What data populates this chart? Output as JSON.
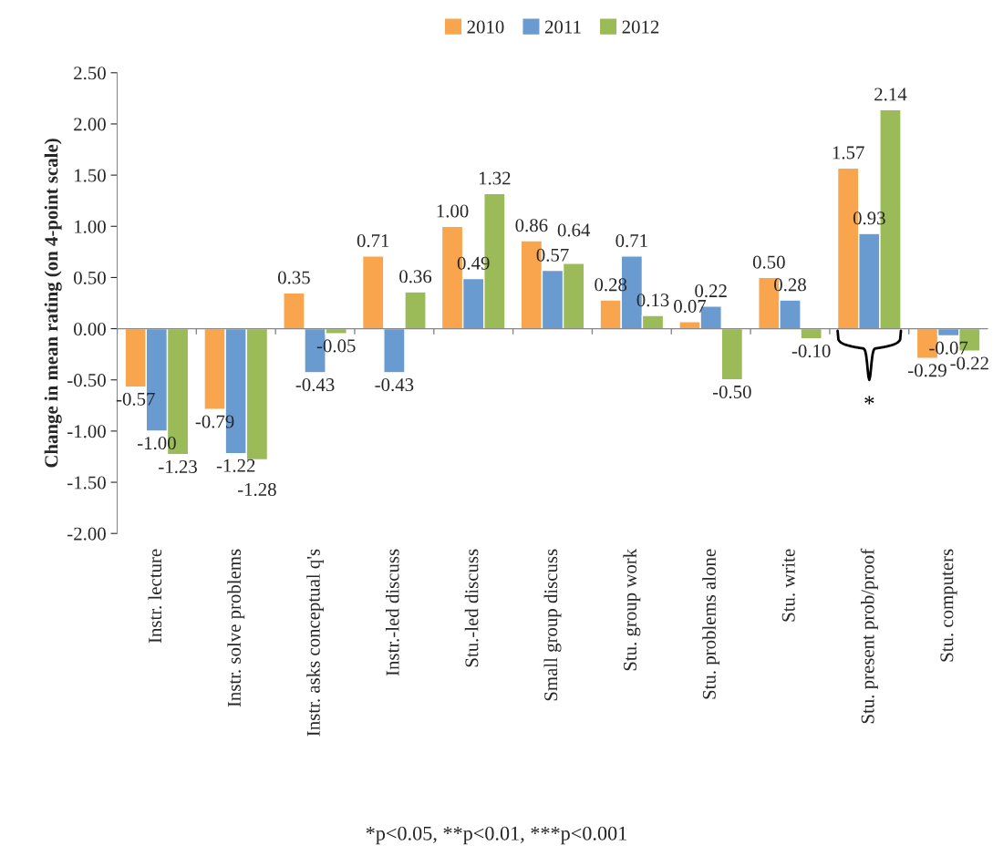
{
  "chart_data": {
    "type": "bar",
    "ylabel": "Change in mean rating (on 4-point scale)",
    "categories": [
      "Instr. lecture",
      "Instr. solve problems",
      "Instr. asks conceptual q's",
      "Instr.-led discuss",
      "Stu.-led discuss",
      "Small group discuss",
      "Stu. group work",
      "Stu. problems alone",
      "Stu. write",
      "Stu. present prob/proof",
      "Stu. computers"
    ],
    "series": [
      {
        "name": "2010",
        "color": "#f9a54e",
        "values": [
          -0.57,
          -0.79,
          0.35,
          0.71,
          1.0,
          0.86,
          0.28,
          0.07,
          0.5,
          1.57,
          -0.29
        ],
        "value_labels": [
          "-0.57",
          "-0.79",
          "0.35",
          "0.71",
          "1.00",
          "0.86",
          "0.28",
          "0.07",
          "0.50",
          "1.57",
          "-0.29"
        ]
      },
      {
        "name": "2011",
        "color": "#6a9bd0",
        "values": [
          -1.0,
          -1.22,
          -0.43,
          -0.43,
          0.49,
          0.57,
          0.71,
          0.22,
          0.28,
          0.93,
          -0.07
        ],
        "value_labels": [
          "-1.00",
          "-1.22",
          "-0.43",
          "-0.43",
          "0.49",
          "0.57",
          "0.71",
          "0.22",
          "0.28",
          "0.93",
          "-0.07"
        ]
      },
      {
        "name": "2012",
        "color": "#9bbb59",
        "values": [
          -1.23,
          -1.28,
          -0.05,
          0.36,
          1.32,
          0.64,
          0.13,
          -0.5,
          -0.1,
          2.14,
          -0.22
        ],
        "value_labels": [
          "-1.23",
          "-1.28",
          "-0.05",
          "0.36",
          "1.32",
          "0.64",
          "0.13",
          "-0.50",
          "-0.10",
          "2.14",
          "-0.22"
        ]
      }
    ],
    "ylim": [
      -2,
      2.5
    ],
    "yticks": [
      {
        "value": -2,
        "label": "-2.00"
      },
      {
        "value": -1.5,
        "label": "-1.50"
      },
      {
        "value": -1,
        "label": "-1.00"
      },
      {
        "value": -0.5,
        "label": "-0.50"
      },
      {
        "value": 0,
        "label": "0.00"
      },
      {
        "value": 0.5,
        "label": "0.50"
      },
      {
        "value": 1,
        "label": "1.00"
      },
      {
        "value": 1.5,
        "label": "1.50"
      },
      {
        "value": 2,
        "label": "2.00"
      },
      {
        "value": 2.5,
        "label": "2.50"
      }
    ],
    "grid": false,
    "legend": "top",
    "ref_lines": [
      {
        "axis": "y",
        "value": 0,
        "color": "#888888"
      }
    ],
    "annotations": [
      "*",
      "*p<0.05, **p<0.01, ***p<0.001"
    ]
  }
}
